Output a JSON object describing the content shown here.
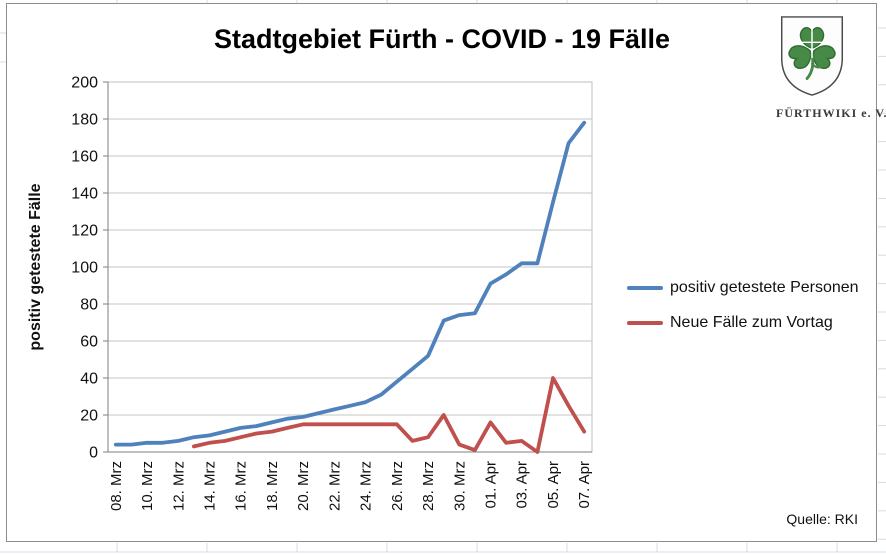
{
  "header": {
    "title": "Stadtgebiet Fürth - COVID - 19 Fälle"
  },
  "logo": {
    "org": "FÜRTHWIKI e. V.",
    "shield_fill": "#fdfdfd",
    "shield_stroke": "#4a4a4a",
    "clover_fill": "#478947",
    "clover_stroke": "#2f6b2f"
  },
  "source_note": "Quelle: RKI",
  "chart_data": {
    "type": "line",
    "title": "Stadtgebiet Fürth - COVID - 19 Fälle",
    "xlabel": "",
    "ylabel": "positiv getestete Fälle",
    "ylim": [
      0,
      200
    ],
    "ytick_step": 20,
    "grid": true,
    "legend_position": "right",
    "x": [
      "08. Mrz",
      "09. Mrz",
      "10. Mrz",
      "11. Mrz",
      "12. Mrz",
      "13. Mrz",
      "14. Mrz",
      "15. Mrz",
      "16. Mrz",
      "17. Mrz",
      "18. Mrz",
      "19. Mrz",
      "20. Mrz",
      "21. Mrz",
      "22. Mrz",
      "23. Mrz",
      "24. Mrz",
      "25. Mrz",
      "26. Mrz",
      "27. Mrz",
      "28. Mrz",
      "29. Mrz",
      "30. Mrz",
      "31. Mrz",
      "01. Apr",
      "02. Apr",
      "03. Apr",
      "04. Apr",
      "05. Apr",
      "06. Apr",
      "07. Apr"
    ],
    "xtick_every": 2,
    "series": [
      {
        "name": "positiv getestete Personen",
        "color": "#4F81BD",
        "values": [
          4,
          4,
          5,
          5,
          6,
          8,
          9,
          11,
          13,
          14,
          16,
          18,
          19,
          21,
          23,
          25,
          27,
          31,
          38,
          45,
          52,
          71,
          74,
          75,
          91,
          96,
          102,
          102,
          135,
          167,
          178
        ]
      },
      {
        "name": "Neue Fälle zum Vortag",
        "color": "#C0504D",
        "values": [
          null,
          null,
          null,
          null,
          null,
          3,
          5,
          6,
          8,
          10,
          11,
          13,
          15,
          15,
          15,
          15,
          15,
          15,
          15,
          6,
          8,
          20,
          4,
          1,
          16,
          5,
          6,
          0,
          40,
          25,
          11
        ]
      }
    ],
    "source": "Quelle: RKI"
  }
}
